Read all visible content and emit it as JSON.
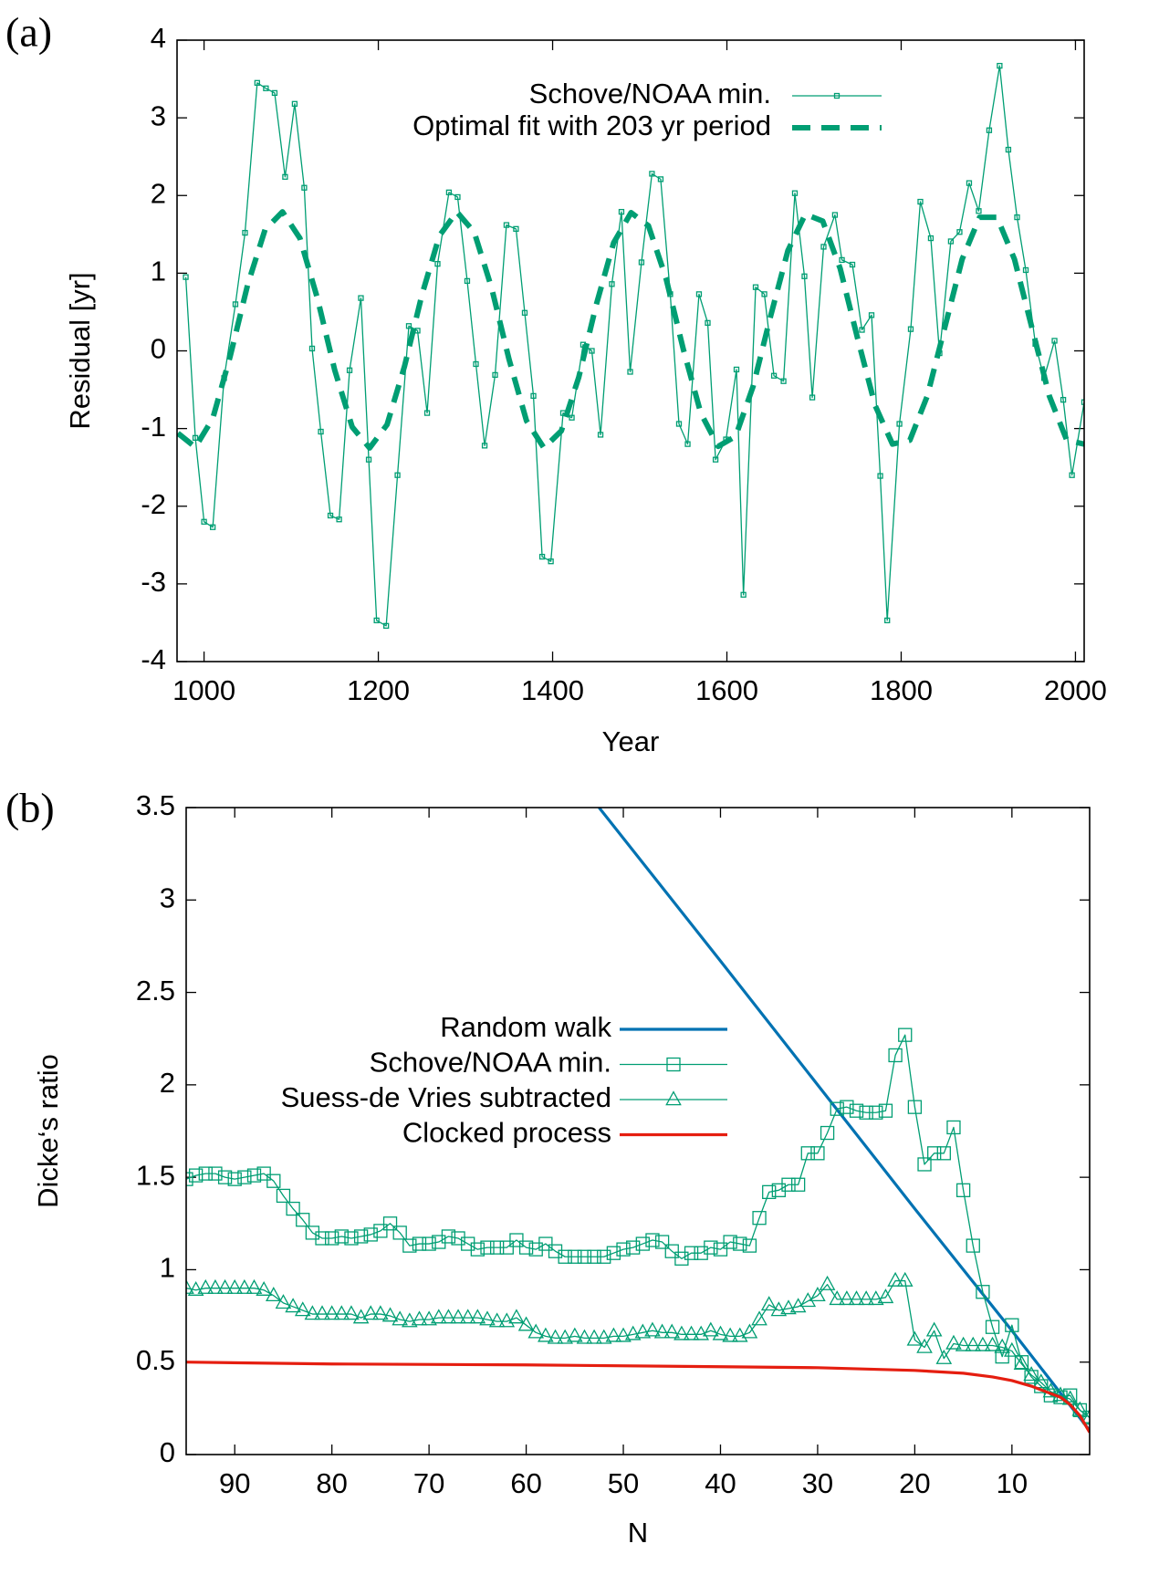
{
  "chart_data": [
    {
      "type": "line",
      "panel_label": "(a)",
      "xlabel": "Year",
      "ylabel": "Residual [yr]",
      "xlim": [
        969,
        2010
      ],
      "xticks": [
        1000,
        1200,
        1400,
        1600,
        1800,
        2000
      ],
      "ylim": [
        -4,
        4
      ],
      "yticks": [
        -4,
        -3,
        -2,
        -1,
        0,
        1,
        2,
        3,
        4
      ],
      "grid": false,
      "series": [
        {
          "name": "Schove/NOAA min.",
          "color": "#009e73",
          "marker": "square",
          "style": "solid",
          "x": [
            979,
            990,
            1000,
            1010,
            1023,
            1036,
            1047,
            1061,
            1071,
            1081,
            1093,
            1104,
            1115,
            1124,
            1134,
            1145,
            1155,
            1167,
            1180,
            1189,
            1198,
            1209,
            1222,
            1235,
            1245,
            1256,
            1268,
            1281,
            1291,
            1302,
            1312,
            1322,
            1334,
            1347,
            1358,
            1368,
            1378,
            1388,
            1398,
            1412,
            1422,
            1435,
            1445,
            1455,
            1468,
            1479,
            1489,
            1502,
            1514,
            1524,
            1535,
            1545,
            1555,
            1568,
            1578,
            1587,
            1599,
            1611,
            1619,
            1633,
            1643,
            1654,
            1665,
            1678,
            1689,
            1698,
            1711,
            1724,
            1732,
            1744,
            1755,
            1766,
            1776,
            1784,
            1798,
            1811,
            1822,
            1834,
            1844,
            1857,
            1867,
            1878,
            1889,
            1901,
            1913,
            1923,
            1933,
            1943,
            1954,
            1964,
            1976,
            1986,
            1996,
            2010
          ],
          "values": [
            0.95,
            -1.12,
            -2.2,
            -2.27,
            -0.35,
            0.6,
            1.52,
            3.45,
            3.38,
            3.32,
            2.24,
            3.18,
            2.1,
            0.03,
            -1.04,
            -2.12,
            -2.17,
            -0.25,
            0.68,
            -1.4,
            -3.47,
            -3.54,
            -1.6,
            0.32,
            0.26,
            -0.8,
            1.12,
            2.04,
            1.98,
            0.9,
            -0.17,
            -1.22,
            -0.31,
            1.62,
            1.57,
            0.49,
            -0.58,
            -2.65,
            -2.71,
            -0.8,
            -0.86,
            0.08,
            0,
            -1.08,
            0.86,
            1.79,
            -0.27,
            1.14,
            2.28,
            2.21,
            0.73,
            -0.94,
            -1.2,
            0.73,
            0.36,
            -1.4,
            -1.14,
            -0.24,
            -3.14,
            0.82,
            0.73,
            -0.32,
            -0.39,
            2.03,
            0.96,
            -0.6,
            1.34,
            1.75,
            1.17,
            1.11,
            0.27,
            0.46,
            -1.61,
            -3.47,
            -0.94,
            0.28,
            1.92,
            1.45,
            -0.03,
            1.41,
            1.53,
            2.16,
            1.8,
            2.84,
            3.67,
            2.59,
            1.72,
            1.04,
            0.09,
            -0.35,
            0.13,
            -0.63,
            -1.6,
            -0.66
          ]
        },
        {
          "name": "Optimal fit with 203 yr period",
          "color": "#009e73",
          "marker": "none",
          "style": "dashed",
          "x": [
            970,
            990,
            1010,
            1030,
            1050,
            1070,
            1090,
            1110,
            1130,
            1150,
            1170,
            1190,
            1210,
            1230,
            1250,
            1270,
            1290,
            1310,
            1330,
            1350,
            1370,
            1390,
            1410,
            1430,
            1450,
            1470,
            1490,
            1510,
            1530,
            1550,
            1570,
            1590,
            1610,
            1630,
            1650,
            1670,
            1690,
            1710,
            1730,
            1750,
            1770,
            1790,
            1810,
            1830,
            1850,
            1870,
            1890,
            1910,
            1930,
            1950,
            1970,
            1990,
            2010
          ],
          "values": [
            -1.06,
            -1.24,
            -0.87,
            -0.07,
            0.85,
            1.56,
            1.79,
            1.45,
            0.68,
            -0.25,
            -0.98,
            -1.25,
            -0.95,
            -0.2,
            0.72,
            1.48,
            1.79,
            1.53,
            0.81,
            -0.11,
            -0.9,
            -1.25,
            -1.03,
            -0.34,
            0.59,
            1.39,
            1.78,
            1.61,
            0.94,
            0.02,
            -0.8,
            -1.23,
            -1.1,
            -0.46,
            0.44,
            1.29,
            1.76,
            1.67,
            1.06,
            0.16,
            -0.7,
            -1.2,
            -1.15,
            -0.58,
            0.3,
            1.18,
            1.72,
            1.72,
            1.18,
            0.3,
            -0.58,
            -1.15,
            -1.2
          ]
        }
      ]
    },
    {
      "type": "line",
      "panel_label": "(b)",
      "xlabel": "N",
      "ylabel": "Dicke‘s ratio",
      "xlim": [
        95,
        2
      ],
      "xticks": [
        90,
        80,
        70,
        60,
        50,
        40,
        30,
        20,
        10
      ],
      "ylim": [
        0,
        3.5
      ],
      "yticks": [
        0,
        0.5,
        1,
        1.5,
        2,
        2.5,
        3,
        3.5
      ],
      "grid": false,
      "series": [
        {
          "name": "Random walk",
          "color": "#0072b2",
          "marker": "none",
          "style": "solid",
          "x": [
            2,
            10,
            20,
            30,
            40,
            52.5
          ],
          "values": [
            0.13,
            0.67,
            1.33,
            2.0,
            2.67,
            3.5
          ]
        },
        {
          "name": "Schove/NOAA min.",
          "color": "#009e73",
          "marker": "square",
          "style": "solid",
          "x": [
            95,
            94,
            93,
            92,
            91,
            90,
            89,
            88,
            87,
            86,
            85,
            84,
            83,
            82,
            81,
            80,
            79,
            78,
            77,
            76,
            75,
            74,
            73,
            72,
            71,
            70,
            69,
            68,
            67,
            66,
            65,
            64,
            63,
            62,
            61,
            60,
            59,
            58,
            57,
            56,
            55,
            54,
            53,
            52,
            51,
            50,
            49,
            48,
            47,
            46,
            45,
            44,
            43,
            42,
            41,
            40,
            39,
            38,
            37,
            36,
            35,
            34,
            33,
            32,
            31,
            30,
            29,
            28,
            27,
            26,
            25,
            24,
            23,
            22,
            21,
            20,
            19,
            18,
            17,
            16,
            15,
            14,
            13,
            12,
            11,
            10,
            9,
            8,
            7,
            6,
            5,
            4,
            3,
            2
          ],
          "values": [
            1.49,
            1.51,
            1.52,
            1.52,
            1.5,
            1.49,
            1.5,
            1.51,
            1.52,
            1.48,
            1.4,
            1.33,
            1.27,
            1.2,
            1.17,
            1.17,
            1.18,
            1.17,
            1.18,
            1.19,
            1.21,
            1.25,
            1.2,
            1.13,
            1.14,
            1.14,
            1.15,
            1.18,
            1.17,
            1.14,
            1.11,
            1.12,
            1.12,
            1.12,
            1.16,
            1.12,
            1.11,
            1.14,
            1.1,
            1.07,
            1.07,
            1.07,
            1.07,
            1.07,
            1.09,
            1.11,
            1.12,
            1.14,
            1.16,
            1.15,
            1.1,
            1.06,
            1.09,
            1.09,
            1.12,
            1.11,
            1.15,
            1.14,
            1.13,
            1.28,
            1.42,
            1.43,
            1.46,
            1.46,
            1.63,
            1.63,
            1.74,
            1.87,
            1.88,
            1.86,
            1.85,
            1.85,
            1.86,
            2.16,
            2.27,
            1.88,
            1.57,
            1.63,
            1.63,
            1.77,
            1.43,
            1.13,
            0.88,
            0.69,
            0.53,
            0.7,
            0.5,
            0.42,
            0.37,
            0.32,
            0.31,
            0.32,
            0.24,
            0.2
          ]
        },
        {
          "name": "Suess-de Vries subtracted",
          "color": "#009e73",
          "marker": "triangle",
          "style": "solid",
          "x": [
            95,
            94,
            93,
            92,
            91,
            90,
            89,
            88,
            87,
            86,
            85,
            84,
            83,
            82,
            81,
            80,
            79,
            78,
            77,
            76,
            75,
            74,
            73,
            72,
            71,
            70,
            69,
            68,
            67,
            66,
            65,
            64,
            63,
            62,
            61,
            60,
            59,
            58,
            57,
            56,
            55,
            54,
            53,
            52,
            51,
            50,
            49,
            48,
            47,
            46,
            45,
            44,
            43,
            42,
            41,
            40,
            39,
            38,
            37,
            36,
            35,
            34,
            33,
            32,
            31,
            30,
            29,
            28,
            27,
            26,
            25,
            24,
            23,
            22,
            21,
            20,
            19,
            18,
            17,
            16,
            15,
            14,
            13,
            12,
            11,
            10,
            9,
            8,
            7,
            6,
            5,
            4,
            3,
            2
          ],
          "values": [
            0.9,
            0.89,
            0.9,
            0.9,
            0.9,
            0.9,
            0.9,
            0.9,
            0.89,
            0.86,
            0.82,
            0.8,
            0.78,
            0.76,
            0.76,
            0.76,
            0.76,
            0.76,
            0.74,
            0.76,
            0.76,
            0.75,
            0.73,
            0.72,
            0.73,
            0.73,
            0.74,
            0.74,
            0.74,
            0.74,
            0.74,
            0.73,
            0.72,
            0.72,
            0.74,
            0.7,
            0.66,
            0.64,
            0.63,
            0.63,
            0.64,
            0.63,
            0.63,
            0.63,
            0.64,
            0.64,
            0.65,
            0.66,
            0.67,
            0.66,
            0.66,
            0.65,
            0.65,
            0.65,
            0.67,
            0.65,
            0.64,
            0.64,
            0.66,
            0.73,
            0.81,
            0.78,
            0.79,
            0.8,
            0.83,
            0.86,
            0.92,
            0.84,
            0.84,
            0.84,
            0.84,
            0.84,
            0.85,
            0.94,
            0.94,
            0.62,
            0.58,
            0.67,
            0.52,
            0.6,
            0.59,
            0.59,
            0.59,
            0.59,
            0.58,
            0.56,
            0.49,
            0.43,
            0.39,
            0.34,
            0.32,
            0.3,
            0.24,
            0.2
          ]
        },
        {
          "name": "Clocked process",
          "color": "#e51e10",
          "marker": "none",
          "style": "solid",
          "x": [
            95,
            80,
            60,
            40,
            30,
            20,
            15,
            12,
            10,
            8,
            6,
            5,
            4,
            3,
            2
          ],
          "values": [
            0.5,
            0.49,
            0.485,
            0.475,
            0.47,
            0.455,
            0.44,
            0.42,
            0.4,
            0.37,
            0.33,
            0.31,
            0.27,
            0.21,
            0.12
          ]
        }
      ]
    }
  ]
}
